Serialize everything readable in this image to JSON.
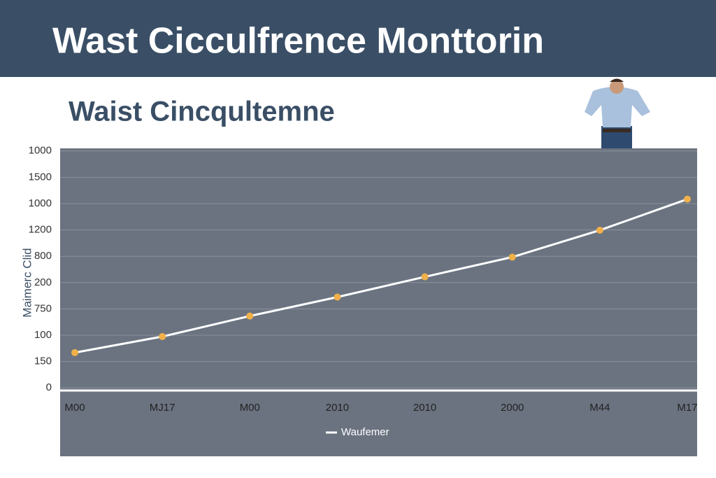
{
  "chart_data": {
    "type": "line",
    "header": "Wast Cicculfrence Monttorin",
    "title": "Waist Cincqultemne",
    "y_label": "Maimerc Clid",
    "categories": [
      "M00",
      "MJ17",
      "M00",
      "2010",
      "2010",
      "2000",
      "M44",
      "M17"
    ],
    "series": [
      {
        "name": "Waufemer",
        "color": "#ffffff",
        "marker_color": "#f0b04a",
        "values": [
          1.34,
          1.95,
          2.73,
          3.45,
          4.22,
          4.97,
          5.99,
          7.17
        ]
      }
    ],
    "ylim": [
      -0.1,
      9.1
    ],
    "yticks": [
      {
        "value": 0,
        "label": "0"
      },
      {
        "value": 1,
        "label": "150"
      },
      {
        "value": 2,
        "label": "100"
      },
      {
        "value": 3,
        "label": "750"
      },
      {
        "value": 4,
        "label": "200"
      },
      {
        "value": 5,
        "label": "800"
      },
      {
        "value": 6,
        "label": "1200"
      },
      {
        "value": 7,
        "label": "1000"
      },
      {
        "value": 8,
        "label": "1500"
      },
      {
        "value": 9,
        "label": "1000"
      }
    ],
    "grid": true
  }
}
